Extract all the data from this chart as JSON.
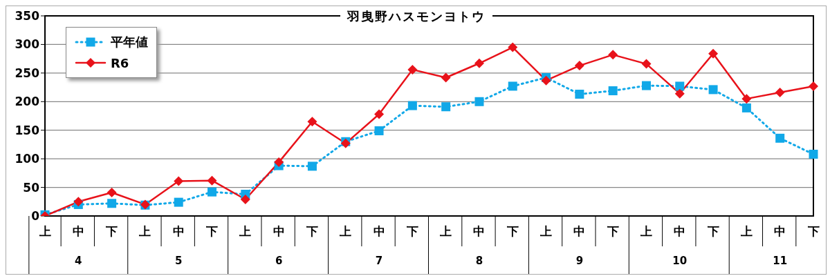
{
  "chart_data": {
    "type": "line",
    "title": "羽曳野ハスモンヨトウ",
    "categories": [
      "上",
      "中",
      "下",
      "上",
      "中",
      "下",
      "上",
      "中",
      "下",
      "上",
      "中",
      "下",
      "上",
      "中",
      "下",
      "上",
      "中",
      "下",
      "上",
      "中",
      "下",
      "上",
      "中",
      "下"
    ],
    "annotations": [
      "4",
      "5",
      "6",
      "7",
      "8",
      "9",
      "10",
      "11"
    ],
    "series": [
      {
        "name": "平年値",
        "color": "#11a8e8",
        "marker": "square",
        "line_style": "dotted",
        "values": [
          2,
          20,
          22,
          19,
          24,
          42,
          38,
          88,
          87,
          130,
          149,
          193,
          191,
          200,
          227,
          242,
          213,
          219,
          228,
          227,
          221,
          189,
          136,
          108
        ]
      },
      {
        "name": "R6",
        "color": "#e8121a",
        "marker": "diamond",
        "line_style": "solid",
        "values": [
          0,
          25,
          41,
          20,
          61,
          62,
          29,
          94,
          165,
          127,
          178,
          256,
          242,
          267,
          295,
          237,
          263,
          282,
          266,
          214,
          284,
          205,
          216,
          227
        ]
      }
    ],
    "ylim": [
      0,
      350
    ],
    "yticks": [
      0,
      50,
      100,
      150,
      200,
      250,
      300,
      350
    ],
    "grid": "y",
    "legend": "top left"
  }
}
